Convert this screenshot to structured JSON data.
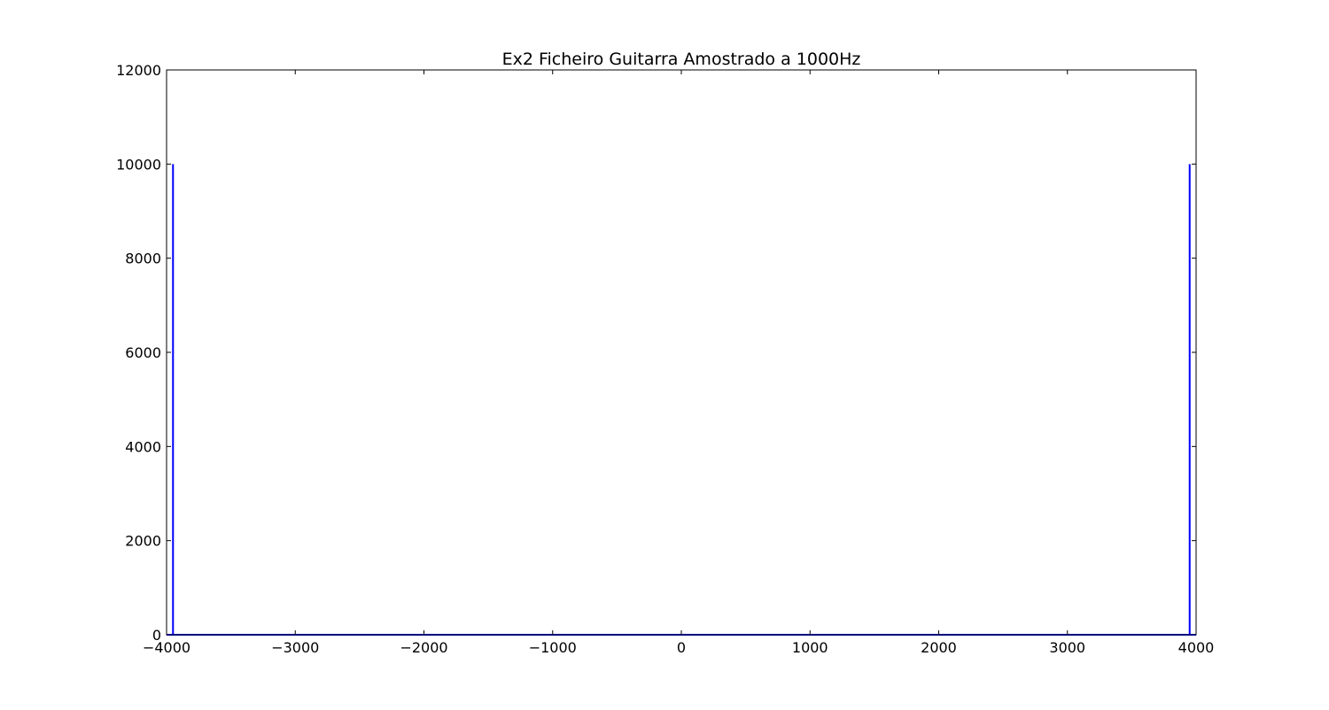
{
  "chart_data": {
    "type": "line",
    "title": "Ex2 Ficheiro Guitarra Amostrado a 1000Hz",
    "xlabel": "",
    "ylabel": "",
    "xlim": [
      -4000,
      4000
    ],
    "ylim": [
      0,
      12000
    ],
    "xticks": [
      -4000,
      -3000,
      -2000,
      -1000,
      0,
      1000,
      2000,
      3000,
      4000
    ],
    "yticks": [
      0,
      2000,
      4000,
      6000,
      8000,
      10000,
      12000
    ],
    "grid": false,
    "line_color": "#0000ff",
    "series": [
      {
        "x": [
          -4000,
          -3950,
          -3950,
          -3950,
          3950,
          3950,
          3950,
          4000
        ],
        "y": [
          0,
          0,
          10000,
          0,
          0,
          10000,
          0,
          0
        ]
      }
    ]
  }
}
